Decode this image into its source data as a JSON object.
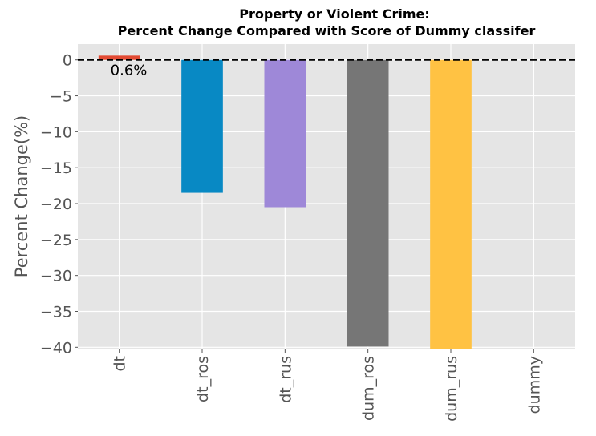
{
  "chart_data": {
    "type": "bar",
    "title": "Property or Violent Crime:",
    "subtitle": "Percent Change Compared with Score of Dummy classifer",
    "ylabel": "Percent Change(%)",
    "xlabel": "",
    "categories": [
      "dt",
      "dt_ros",
      "dt_rus",
      "dum_ros",
      "dum_rus",
      "dummy"
    ],
    "values": [
      0.6,
      -18.5,
      -20.5,
      -39.9,
      -40.3,
      0
    ],
    "colors": [
      "#E24A33",
      "#0889C4",
      "#9E88D8",
      "#767676",
      "#FFC243",
      "#E5E5E5"
    ],
    "ylim": [
      -40.3,
      2.2
    ],
    "yticks": [
      0,
      -5,
      -10,
      -15,
      -20,
      -25,
      -30,
      -35,
      -40
    ],
    "ytick_labels": [
      "0",
      "−5",
      "−10",
      "−15",
      "−20",
      "−25",
      "−30",
      "−35",
      "−40"
    ],
    "grid": true,
    "reference_line": {
      "y": 0,
      "style": "dashed",
      "color": "#000000"
    },
    "annotations": [
      {
        "category": "dt",
        "text": "0.6%"
      }
    ]
  }
}
